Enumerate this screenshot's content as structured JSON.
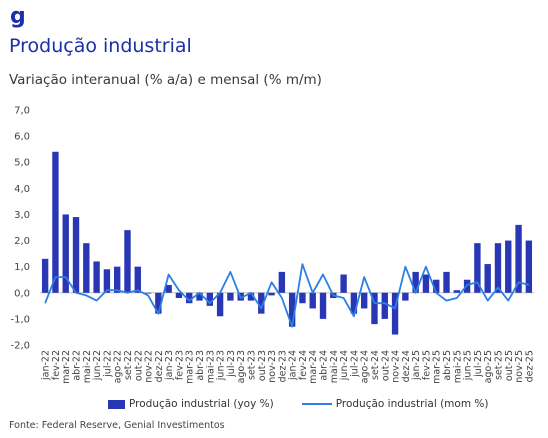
{
  "logo": {
    "text": "g",
    "color": "#1a2fa8"
  },
  "header": {
    "title": "Produção industrial",
    "subtitle": "Variação interanual (% a/a) e mensal (% m/m)"
  },
  "source": "Fonte: Federal Reserve, Genial Investimentos",
  "colors": {
    "bar": "#2a37b5",
    "line": "#2b7fe6",
    "title": "#1a2fa8"
  },
  "chart_data": {
    "type": "bar",
    "title": "",
    "xlabel": "",
    "ylabel": "",
    "ylim": [
      -2.0,
      7.0
    ],
    "yticks": [
      "7,0",
      "6,0",
      "5,0",
      "4,0",
      "3,0",
      "2,0",
      "1,0",
      "0,0",
      "-1,0",
      "-2,0"
    ],
    "ytick_values": [
      7,
      6,
      5,
      4,
      3,
      2,
      1,
      0,
      -1,
      -2
    ],
    "grid": false,
    "legend_position": "bottom",
    "categories": [
      "jan-22",
      "fev-22",
      "mar-22",
      "abr-22",
      "mai-22",
      "jun-22",
      "jul-22",
      "ago-22",
      "set-22",
      "out-22",
      "nov-22",
      "dez-22",
      "jan-23",
      "fev-23",
      "mar-23",
      "abr-23",
      "mai-23",
      "jun-23",
      "jul-23",
      "ago-23",
      "set-23",
      "out-23",
      "nov-23",
      "dez-23",
      "jan-24",
      "fev-24",
      "mar-24",
      "abr-24",
      "mai-24",
      "jun-24",
      "jul-24",
      "ago-24",
      "set-24",
      "out-24",
      "nov-24",
      "dez-24",
      "jan-25",
      "fev-25",
      "mar-25",
      "abr-25",
      "mai-25",
      "jun-25",
      "jul-25",
      "ago-25",
      "set-25",
      "out-25",
      "nov-25",
      "dez-25"
    ],
    "series": [
      {
        "name": "Produção industrial (yoy %)",
        "type": "bar",
        "values": [
          1.3,
          5.4,
          3.0,
          2.9,
          1.9,
          1.2,
          0.9,
          1.0,
          2.4,
          1.0,
          0.0,
          -0.8,
          0.3,
          -0.2,
          -0.4,
          -0.3,
          -0.5,
          -0.9,
          -0.3,
          -0.3,
          -0.3,
          -0.8,
          -0.1,
          0.8,
          -1.3,
          -0.4,
          -0.6,
          -1.0,
          -0.2,
          0.7,
          -0.8,
          -0.6,
          -1.2,
          -1.0,
          -1.6,
          -0.3,
          0.8,
          0.7,
          0.5,
          0.8,
          0.1,
          0.5,
          1.9,
          1.1,
          1.9,
          2.0,
          2.6,
          2.0
        ]
      },
      {
        "name": "Produção industrial (mom %)",
        "type": "line",
        "values": [
          -0.4,
          0.6,
          0.6,
          0.0,
          -0.1,
          -0.3,
          0.1,
          0.1,
          0.0,
          0.1,
          -0.1,
          -0.8,
          0.7,
          0.1,
          -0.3,
          0.0,
          -0.4,
          0.0,
          0.8,
          -0.2,
          0.0,
          -0.6,
          0.4,
          -0.2,
          -1.3,
          1.1,
          0.0,
          0.7,
          -0.1,
          -0.2,
          -0.9,
          0.6,
          -0.4,
          -0.4,
          -0.6,
          1.0,
          0.0,
          1.0,
          0.0,
          -0.3,
          -0.2,
          0.3,
          0.4,
          -0.3,
          0.2,
          -0.3,
          0.4,
          0.3
        ]
      }
    ]
  }
}
